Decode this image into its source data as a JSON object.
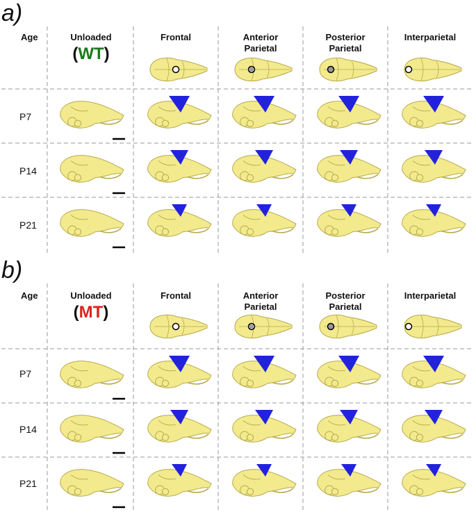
{
  "panels": [
    {
      "label": "a)",
      "age_header": "Age",
      "genotype": {
        "open": "(",
        "text": "WT",
        "close": ")",
        "color": "#1a7a1a"
      },
      "columns": [
        "Unloaded",
        "Frontal",
        "Anterior Parietal",
        "Posterior Parietal",
        "Interparietal"
      ],
      "rows": [
        "P7",
        "P14",
        "P21"
      ]
    },
    {
      "label": "b)",
      "age_header": "Age",
      "genotype": {
        "open": "(",
        "text": "MT",
        "close": ")",
        "color": "#e02020"
      },
      "columns": [
        "Unloaded",
        "Frontal",
        "Anterior Parietal",
        "Posterior Parietal",
        "Interparietal"
      ],
      "rows": [
        "P7",
        "P14",
        "P21"
      ]
    }
  ],
  "colors": {
    "skull": "#f3ea8e",
    "skull_stroke": "#b5a94a",
    "cone": "#2222dd",
    "grid": "#9a9a9a"
  }
}
